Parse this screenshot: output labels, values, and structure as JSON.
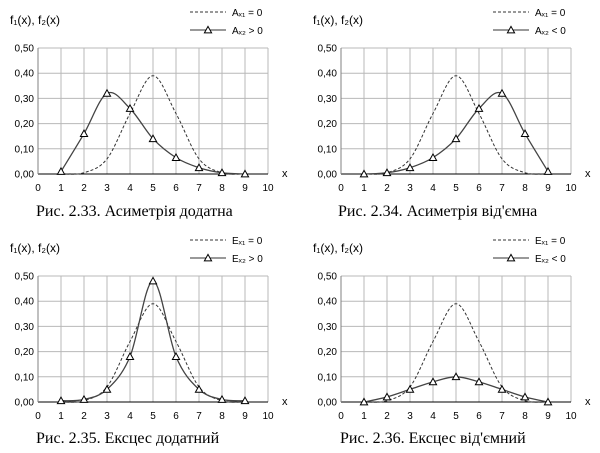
{
  "chart_data": [
    {
      "type": "line",
      "caption": "Рис. 2.33. Асиметрія додатна",
      "ylabel": "f₁(x), f₂(x)",
      "xlabel": "x",
      "xlim": [
        0,
        10
      ],
      "ylim": [
        0,
        0.5
      ],
      "x_ticks": [
        "0",
        "1",
        "2",
        "3",
        "4",
        "5",
        "6",
        "7",
        "8",
        "9",
        "10"
      ],
      "y_ticks": [
        "0,00",
        "0,10",
        "0,20",
        "0,30",
        "0,40",
        "0,50"
      ],
      "grid": true,
      "legend": "top-right",
      "series": [
        {
          "name": "Aₓ₁ = 0",
          "style": "dashed",
          "marker": "none",
          "x": [
            1,
            2,
            3,
            4,
            5,
            6,
            7,
            8,
            9
          ],
          "y": [
            0.0,
            0.005,
            0.06,
            0.24,
            0.39,
            0.24,
            0.06,
            0.005,
            0.0
          ]
        },
        {
          "name": "Aₓ₂ > 0",
          "style": "solid",
          "marker": "triangle",
          "x": [
            1,
            2,
            3,
            4,
            5,
            6,
            7,
            8,
            9
          ],
          "y": [
            0.01,
            0.16,
            0.32,
            0.26,
            0.14,
            0.065,
            0.025,
            0.005,
            0.0
          ]
        }
      ]
    },
    {
      "type": "line",
      "caption": "Рис. 2.34. Асиметрія від'ємна",
      "ylabel": "f₁(x), f₂(x)",
      "xlabel": "x",
      "xlim": [
        0,
        10
      ],
      "ylim": [
        0,
        0.5
      ],
      "x_ticks": [
        "0",
        "1",
        "2",
        "3",
        "4",
        "5",
        "6",
        "7",
        "8",
        "9",
        "10"
      ],
      "y_ticks": [
        "0,00",
        "0,10",
        "0,20",
        "0,30",
        "0,40",
        "0,50"
      ],
      "grid": true,
      "legend": "top-right",
      "series": [
        {
          "name": "Aₓ₁ = 0",
          "style": "dashed",
          "marker": "none",
          "x": [
            1,
            2,
            3,
            4,
            5,
            6,
            7,
            8,
            9
          ],
          "y": [
            0.0,
            0.005,
            0.06,
            0.24,
            0.39,
            0.24,
            0.06,
            0.005,
            0.0
          ]
        },
        {
          "name": "Aₓ₂ < 0",
          "style": "solid",
          "marker": "triangle",
          "x": [
            1,
            2,
            3,
            4,
            5,
            6,
            7,
            8,
            9
          ],
          "y": [
            0.0,
            0.005,
            0.025,
            0.065,
            0.14,
            0.26,
            0.32,
            0.16,
            0.01
          ]
        }
      ]
    },
    {
      "type": "line",
      "caption": "Рис. 2.35. Ексцес додатний",
      "ylabel": "f₁(x), f₂(x)",
      "xlabel": "x",
      "xlim": [
        0,
        10
      ],
      "ylim": [
        0,
        0.5
      ],
      "x_ticks": [
        "0",
        "1",
        "2",
        "3",
        "4",
        "5",
        "6",
        "7",
        "8",
        "9",
        "10"
      ],
      "y_ticks": [
        "0,00",
        "0,10",
        "0,20",
        "0,30",
        "0,40",
        "0,50"
      ],
      "grid": true,
      "legend": "top-right",
      "series": [
        {
          "name": "Eₓ₁ = 0",
          "style": "dashed",
          "marker": "none",
          "x": [
            1,
            2,
            3,
            4,
            5,
            6,
            7,
            8,
            9
          ],
          "y": [
            0.0,
            0.005,
            0.06,
            0.24,
            0.39,
            0.24,
            0.06,
            0.005,
            0.0
          ]
        },
        {
          "name": "Eₓ₂ > 0",
          "style": "solid",
          "marker": "triangle",
          "x": [
            1,
            2,
            3,
            4,
            5,
            6,
            7,
            8,
            9
          ],
          "y": [
            0.005,
            0.01,
            0.05,
            0.18,
            0.48,
            0.18,
            0.05,
            0.01,
            0.005
          ]
        }
      ]
    },
    {
      "type": "line",
      "caption": "Рис. 2.36. Ексцес від'ємний",
      "ylabel": "f₁(x), f₂(x)",
      "xlabel": "x",
      "xlim": [
        0,
        10
      ],
      "ylim": [
        0,
        0.5
      ],
      "x_ticks": [
        "0",
        "1",
        "2",
        "3",
        "4",
        "5",
        "6",
        "7",
        "8",
        "9",
        "10"
      ],
      "y_ticks": [
        "0,00",
        "0,10",
        "0,20",
        "0,30",
        "0,40",
        "0,50"
      ],
      "grid": true,
      "legend": "top-right",
      "series": [
        {
          "name": "Eₓ₁ = 0",
          "style": "dashed",
          "marker": "none",
          "x": [
            1,
            2,
            3,
            4,
            5,
            6,
            7,
            8,
            9
          ],
          "y": [
            0.0,
            0.005,
            0.06,
            0.24,
            0.39,
            0.24,
            0.06,
            0.005,
            0.0
          ]
        },
        {
          "name": "Eₓ₂ < 0",
          "style": "solid",
          "marker": "triangle",
          "x": [
            1,
            2,
            3,
            4,
            5,
            6,
            7,
            8,
            9
          ],
          "y": [
            0.0,
            0.02,
            0.05,
            0.08,
            0.1,
            0.08,
            0.05,
            0.02,
            0.0
          ]
        }
      ]
    }
  ]
}
